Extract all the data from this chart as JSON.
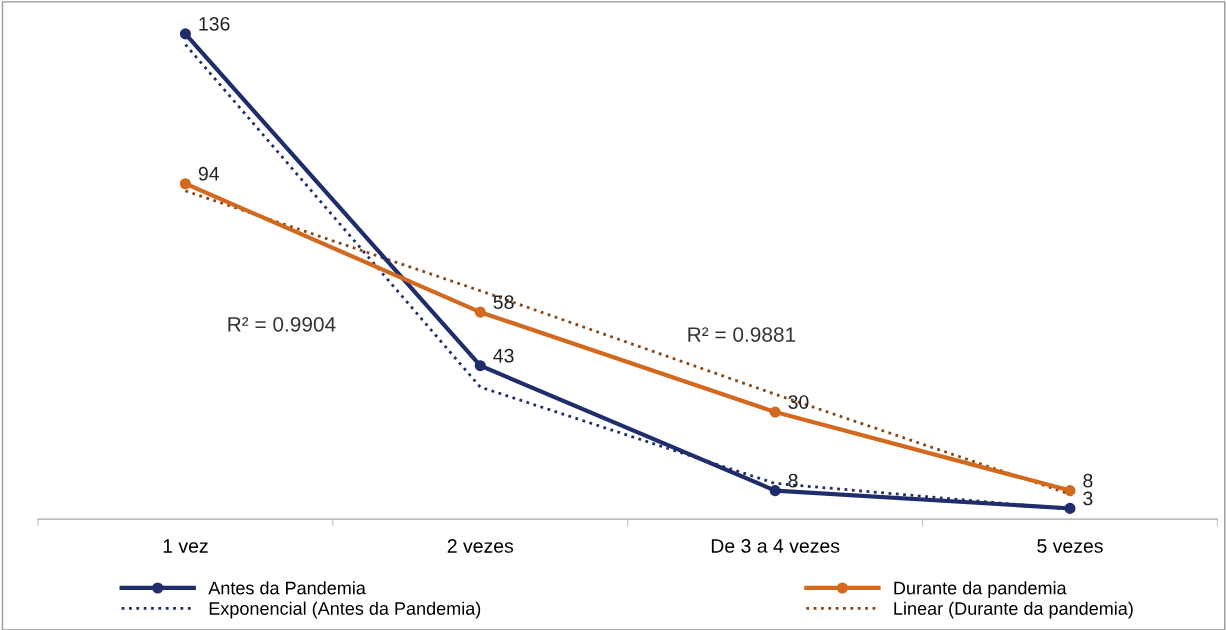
{
  "chart_data": {
    "type": "line",
    "categories": [
      "1 vez",
      "2 vezes",
      "De 3 a 4 vezes",
      "5 vezes"
    ],
    "series": [
      {
        "name": "Antes da Pandemia",
        "color": "#1f2d6b",
        "values": [
          136,
          43,
          8,
          3
        ],
        "value_labels": [
          "136",
          "43",
          "8",
          "3"
        ],
        "marker": "circle",
        "line_style": "solid"
      },
      {
        "name": "Durante da pandemia",
        "color": "#d2691e",
        "values": [
          94,
          58,
          30,
          8
        ],
        "value_labels": [
          "94",
          "58",
          "30",
          "8"
        ],
        "marker": "circle",
        "line_style": "solid"
      },
      {
        "name": "Exponencial (Antes da Pandemia)",
        "type": "line",
        "color": "#1f2d6b",
        "marker": "none",
        "line_style": "dotted",
        "values": [
          133,
          37,
          10,
          2.8
        ]
      },
      {
        "name": "Linear (Durante da pandemia)",
        "type": "line",
        "color": "#8b4513",
        "marker": "none",
        "line_style": "dotted",
        "values": [
          92,
          64,
          35,
          7
        ]
      }
    ],
    "annotations": [
      "R² = 0.9904",
      "R² = 0.9881"
    ],
    "legend": "bottom",
    "grid": false,
    "tick_labels": "x"
  }
}
